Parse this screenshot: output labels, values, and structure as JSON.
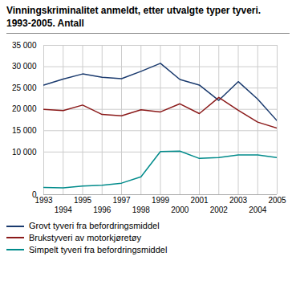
{
  "chart_data": {
    "type": "line",
    "title": "Vinningskriminalitet anmeldt, etter utvalgte typer tyveri.\n1993-2005. Antall",
    "x": [
      1993,
      1994,
      1995,
      1996,
      1997,
      1998,
      1999,
      2000,
      2001,
      2002,
      2003,
      2004,
      2005
    ],
    "series": [
      {
        "name": "Grovt tyveri fra befordringsmiddel",
        "color": "#1a3a6e",
        "values": [
          25700,
          27100,
          28300,
          27500,
          27200,
          28900,
          30800,
          27000,
          25700,
          22100,
          26500,
          22400,
          17300
        ]
      },
      {
        "name": "Brukstyveri av motorkjøretøy",
        "color": "#8b1a1a",
        "values": [
          20000,
          19700,
          21000,
          18800,
          18500,
          19900,
          19400,
          21300,
          19000,
          22800,
          19800,
          17000,
          15600
        ]
      },
      {
        "name": "Simpelt tyveri fra befordringsmiddel",
        "color": "#008b8b",
        "values": [
          1700,
          1600,
          2000,
          2200,
          2700,
          4200,
          10100,
          10200,
          8500,
          8700,
          9300,
          9300,
          8700
        ]
      }
    ],
    "xlim": [
      1993,
      2005
    ],
    "xticks": [
      1993,
      1994,
      1995,
      1996,
      1997,
      1998,
      1999,
      2000,
      2001,
      2002,
      2003,
      2004,
      2005
    ],
    "ylim": [
      0,
      35000
    ],
    "yticks": [
      0,
      {
        "value": 10000,
        "label": "10 000"
      },
      {
        "value": 15000,
        "label": "15 000"
      },
      {
        "value": 20000,
        "label": "20 000"
      },
      {
        "value": 25000,
        "label": "25 000"
      },
      {
        "value": 30000,
        "label": "30 000"
      },
      {
        "value": 35000,
        "label": "35 000"
      }
    ],
    "grid": true,
    "legend": "bottom"
  }
}
